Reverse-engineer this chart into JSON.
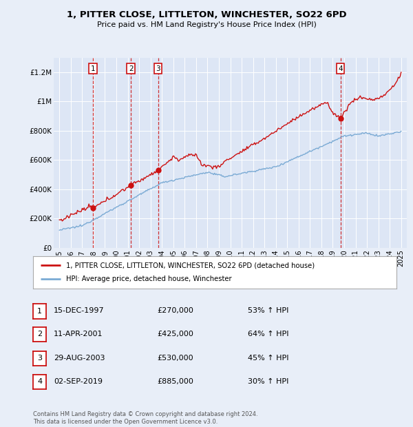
{
  "title1": "1, PITTER CLOSE, LITTLETON, WINCHESTER, SO22 6PD",
  "title2": "Price paid vs. HM Land Registry's House Price Index (HPI)",
  "background_color": "#e8eef8",
  "plot_bg": "#dde6f5",
  "legend_line1": "1, PITTER CLOSE, LITTLETON, WINCHESTER, SO22 6PD (detached house)",
  "legend_line2": "HPI: Average price, detached house, Winchester",
  "sales": [
    {
      "num": 1,
      "date_x": 1997.96,
      "price": 270000,
      "label": "15-DEC-1997",
      "pct": "53%"
    },
    {
      "num": 2,
      "date_x": 2001.28,
      "price": 425000,
      "label": "11-APR-2001",
      "pct": "64%"
    },
    {
      "num": 3,
      "date_x": 2003.66,
      "price": 530000,
      "label": "29-AUG-2003",
      "pct": "45%"
    },
    {
      "num": 4,
      "date_x": 2019.67,
      "price": 885000,
      "label": "02-SEP-2019",
      "pct": "30%"
    }
  ],
  "footer": "Contains HM Land Registry data © Crown copyright and database right 2024.\nThis data is licensed under the Open Government Licence v3.0.",
  "hpi_color": "#7aaad4",
  "price_color": "#cc1111",
  "vline_color": "#cc1111",
  "xlim_lo": 1994.5,
  "xlim_hi": 2025.5,
  "ylim_lo": 0,
  "ylim_hi": 1300000,
  "yticks": [
    0,
    200000,
    400000,
    600000,
    800000,
    1000000,
    1200000
  ],
  "ytick_labels": [
    "£0",
    "£200K",
    "£400K",
    "£600K",
    "£800K",
    "£1M",
    "£1.2M"
  ],
  "xticks": [
    1995,
    1996,
    1997,
    1998,
    1999,
    2000,
    2001,
    2002,
    2003,
    2004,
    2005,
    2006,
    2007,
    2008,
    2009,
    2010,
    2011,
    2012,
    2013,
    2014,
    2015,
    2016,
    2017,
    2018,
    2019,
    2020,
    2021,
    2022,
    2023,
    2024,
    2025
  ]
}
